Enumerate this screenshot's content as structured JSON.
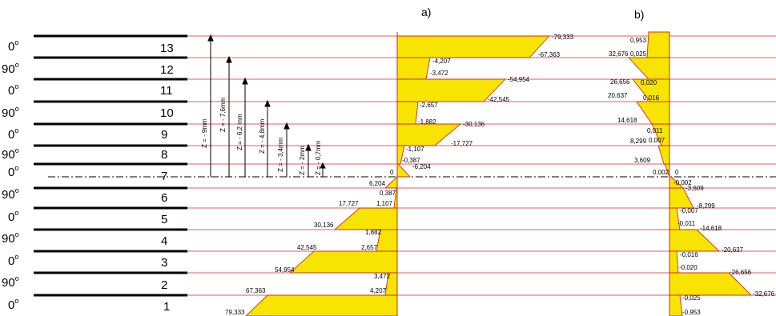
{
  "panels": {
    "a": "a)",
    "b": "b)"
  },
  "plies": [
    {
      "number": "13",
      "angle": "0"
    },
    {
      "number": "12",
      "angle": "90"
    },
    {
      "number": "11",
      "angle": "0"
    },
    {
      "number": "10",
      "angle": "90"
    },
    {
      "number": "9",
      "angle": "0"
    },
    {
      "number": "8",
      "angle": "90"
    },
    {
      "number": "7",
      "angle": "0"
    },
    {
      "number": "6",
      "angle": "90"
    },
    {
      "number": "5",
      "angle": "0"
    },
    {
      "number": "4",
      "angle": "90"
    },
    {
      "number": "3",
      "angle": "0"
    },
    {
      "number": "2",
      "angle": "90"
    },
    {
      "number": "1",
      "angle": "0"
    }
  ],
  "degree_symbol": "o",
  "z_labels": [
    "Z = - 9mm",
    "Z = - 7,6mm",
    "Z = - 6,2 mm",
    "Z = - 4,8mm",
    "Z = - 3,4mm",
    "Z = - 2mm",
    "Z = - 0,7mm"
  ],
  "stress_a": [
    {
      "ply": "13",
      "top": "-79,333",
      "bottom": "-67,363"
    },
    {
      "ply": "12",
      "top": "-4,207",
      "bottom": "-3,472"
    },
    {
      "ply": "11",
      "top": "-54,954",
      "bottom": "-42,545"
    },
    {
      "ply": "10",
      "top": "-2,657",
      "bottom": ""
    },
    {
      "ply": "9",
      "top": "-1,882",
      "bottom": "-30,136"
    },
    {
      "ply": "8",
      "top": "-17,727",
      "bottom": "-1,107"
    },
    {
      "ply": "7",
      "top": "-0,387",
      "bottom": "-6,204",
      "zero": "0"
    },
    {
      "ply": "7b",
      "top": "6,204",
      "bottom": "0,387"
    },
    {
      "ply": "6",
      "top": "1,107",
      "bottom": "17,727"
    },
    {
      "ply": "5",
      "top": "30,136",
      "bottom": "1,882"
    },
    {
      "ply": "4",
      "top": "2,657",
      "bottom": "42,545"
    },
    {
      "ply": "3",
      "top": "54,954",
      "bottom": "3,472"
    },
    {
      "ply": "2",
      "top": "4,207",
      "bottom": "67,363"
    },
    {
      "ply": "1",
      "top": "79,333",
      "bottom": ""
    }
  ],
  "stress_b": [
    {
      "ply": "13",
      "top": "0,953",
      "bottom": "0,025"
    },
    {
      "ply": "12",
      "top": "32,676",
      "bottom": ""
    },
    {
      "ply": "11",
      "top": "26,656",
      "bottom": "0,020"
    },
    {
      "ply": "10",
      "top": "20,637",
      "bottom": "0,016"
    },
    {
      "ply": "9",
      "top": "14,618",
      "bottom": "0,011"
    },
    {
      "ply": "8",
      "top": "8,299",
      "bottom": "0,007"
    },
    {
      "ply": "7",
      "top": "3,609",
      "bottom": "0,002",
      "zero": "0"
    },
    {
      "ply": "6",
      "top": "-0,002",
      "bottom": "-3,609"
    },
    {
      "ply": "5",
      "top": "-8,299",
      "bottom": "-0,007"
    },
    {
      "ply": "4",
      "top": "-0,011",
      "bottom": "-14,618"
    },
    {
      "ply": "3",
      "top": "-20,637",
      "bottom": "-0,016"
    },
    {
      "ply": "2",
      "top": "-0,020",
      "bottom": "-26,656"
    },
    {
      "ply": "1",
      "top": "-32,676",
      "bottom": "-0,025"
    },
    {
      "ply": "0",
      "top": "-0,953",
      "bottom": ""
    }
  ],
  "colors": {
    "fill": "#f7e400",
    "outline": "#d42a2a",
    "line": "#000000"
  }
}
